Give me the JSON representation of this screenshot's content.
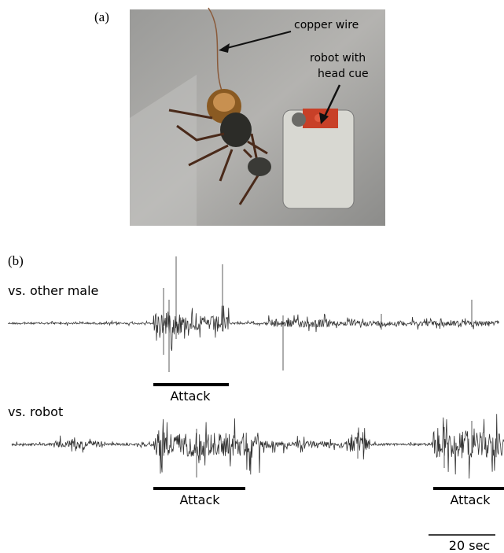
{
  "panel_a": {
    "label": "(a)",
    "annotations": [
      "copper wire",
      "robot with",
      "head cue"
    ]
  },
  "panel_b": {
    "label": "(b)",
    "traces": [
      {
        "label": "vs. other male",
        "events": [
          "Attack"
        ]
      },
      {
        "label": "vs. robot",
        "events": [
          "Attack",
          "Attack"
        ]
      }
    ],
    "scale_bar": "20 sec"
  }
}
